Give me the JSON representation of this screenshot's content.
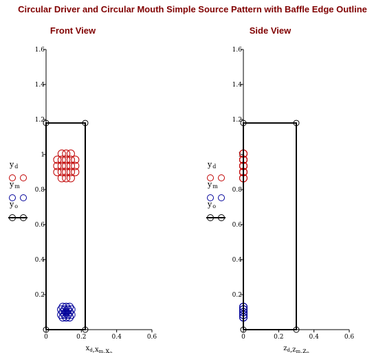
{
  "title": "Circular Driver and Circular Mouth Simple Source Pattern with Baffle Edge Outline",
  "colors": {
    "driver": "#c00000",
    "mouth": "#000099",
    "outline": "#000000",
    "title": "#800000"
  },
  "chart_data": [
    {
      "type": "scatter",
      "title": "Front View",
      "xlim": [
        0,
        0.6
      ],
      "ylim": [
        0,
        1.6
      ],
      "xticks": [
        "0",
        "0.2",
        "0.4",
        "0.6"
      ],
      "yticks": [
        "0.2",
        "0.4",
        "0.6",
        "0.8",
        "1",
        "1.2",
        "1.4",
        "1.6"
      ],
      "xlabel": {
        "parts": [
          [
            "x",
            "d"
          ],
          [
            "x",
            "m"
          ],
          [
            "x",
            "o"
          ]
        ]
      },
      "legend": [
        {
          "label": "y",
          "sub": "d",
          "marker": "circle",
          "color": "#c00000"
        },
        {
          "label": "y",
          "sub": "m",
          "marker": "circle",
          "color": "#000099"
        },
        {
          "label": "y",
          "sub": "o",
          "marker": "circle-line",
          "color": "#000000"
        }
      ],
      "series": [
        {
          "name": "driver",
          "x": [
            0.089,
            0.114,
            0.14,
            0.064,
            0.089,
            0.114,
            0.14,
            0.165,
            0.064,
            0.089,
            0.114,
            0.14,
            0.165,
            0.064,
            0.089,
            0.114,
            0.14,
            0.165,
            0.089,
            0.114,
            0.14
          ],
          "y": [
            1.005,
            1.005,
            1.005,
            0.97,
            0.97,
            0.97,
            0.97,
            0.97,
            0.935,
            0.935,
            0.935,
            0.935,
            0.935,
            0.9,
            0.9,
            0.9,
            0.9,
            0.9,
            0.865,
            0.865,
            0.865
          ]
        },
        {
          "name": "mouth",
          "x": [
            0.095,
            0.114,
            0.133,
            0.086,
            0.105,
            0.124,
            0.143,
            0.095,
            0.114,
            0.133,
            0.086,
            0.105,
            0.124,
            0.143,
            0.095,
            0.114,
            0.133
          ],
          "y": [
            0.13,
            0.13,
            0.13,
            0.115,
            0.115,
            0.115,
            0.115,
            0.1,
            0.1,
            0.1,
            0.085,
            0.085,
            0.085,
            0.085,
            0.07,
            0.07,
            0.07
          ]
        },
        {
          "name": "outline",
          "x": [
            0,
            0.222,
            0.222,
            0,
            0
          ],
          "y": [
            0,
            0,
            1.18,
            1.18,
            0
          ]
        }
      ]
    },
    {
      "type": "scatter",
      "title": "Side View",
      "xlim": [
        0,
        0.6
      ],
      "ylim": [
        0,
        1.6
      ],
      "xticks": [
        "0",
        "0.2",
        "0.4",
        "0.6"
      ],
      "yticks": [
        "0.2",
        "0.4",
        "0.6",
        "0.8",
        "1",
        "1.2",
        "1.4",
        "1.6"
      ],
      "xlabel": {
        "parts": [
          [
            "z",
            "d"
          ],
          [
            "z",
            "m"
          ],
          [
            "z",
            "o"
          ]
        ]
      },
      "legend": [
        {
          "label": "y",
          "sub": "d",
          "marker": "circle",
          "color": "#c00000"
        },
        {
          "label": "y",
          "sub": "m",
          "marker": "circle",
          "color": "#000099"
        },
        {
          "label": "y",
          "sub": "o",
          "marker": "circle-line",
          "color": "#000000"
        }
      ],
      "series": [
        {
          "name": "driver",
          "x": [
            0,
            0,
            0,
            0,
            0,
            0,
            0,
            0,
            0,
            0,
            0,
            0,
            0,
            0,
            0,
            0,
            0,
            0,
            0,
            0,
            0
          ],
          "y": [
            1.005,
            1.005,
            1.005,
            0.97,
            0.97,
            0.97,
            0.97,
            0.97,
            0.935,
            0.935,
            0.935,
            0.935,
            0.935,
            0.9,
            0.9,
            0.9,
            0.9,
            0.9,
            0.865,
            0.865,
            0.865
          ]
        },
        {
          "name": "mouth",
          "x": [
            0,
            0,
            0,
            0,
            0,
            0,
            0,
            0,
            0,
            0,
            0,
            0,
            0,
            0,
            0,
            0,
            0
          ],
          "y": [
            0.13,
            0.13,
            0.13,
            0.115,
            0.115,
            0.115,
            0.115,
            0.1,
            0.1,
            0.1,
            0.085,
            0.085,
            0.085,
            0.085,
            0.07,
            0.07,
            0.07
          ]
        },
        {
          "name": "outline",
          "x": [
            0,
            0.3,
            0.3,
            0,
            0
          ],
          "y": [
            0,
            0,
            1.18,
            1.18,
            0
          ]
        }
      ]
    }
  ]
}
